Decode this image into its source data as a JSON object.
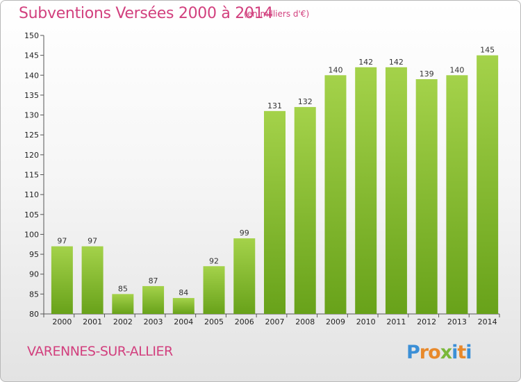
{
  "header": {
    "title": "Subventions Versées 2000 à 2014",
    "subtitle": "(en milliers d'€)"
  },
  "footer": {
    "commune": "VARENNES-SUR-ALLIER",
    "logo_text": "Proxiti"
  },
  "colors": {
    "text_accent": "#d2407e",
    "bar_light": "#a4d24a",
    "bar_dark": "#68a21a"
  },
  "chart_data": {
    "type": "bar",
    "title": "Subventions Versées 2000 à 2014",
    "subtitle": "(en milliers d'€)",
    "xlabel": "",
    "ylabel": "",
    "ylim": [
      80,
      150
    ],
    "yticks": [
      80,
      85,
      90,
      95,
      100,
      105,
      110,
      115,
      120,
      125,
      130,
      135,
      140,
      145,
      150
    ],
    "grid": false,
    "categories": [
      "2000",
      "2001",
      "2002",
      "2003",
      "2004",
      "2005",
      "2006",
      "2007",
      "2008",
      "2009",
      "2010",
      "2011",
      "2012",
      "2013",
      "2014"
    ],
    "values": [
      97,
      97,
      85,
      87,
      84,
      92,
      99,
      131,
      132,
      140,
      142,
      142,
      139,
      140,
      145
    ]
  }
}
